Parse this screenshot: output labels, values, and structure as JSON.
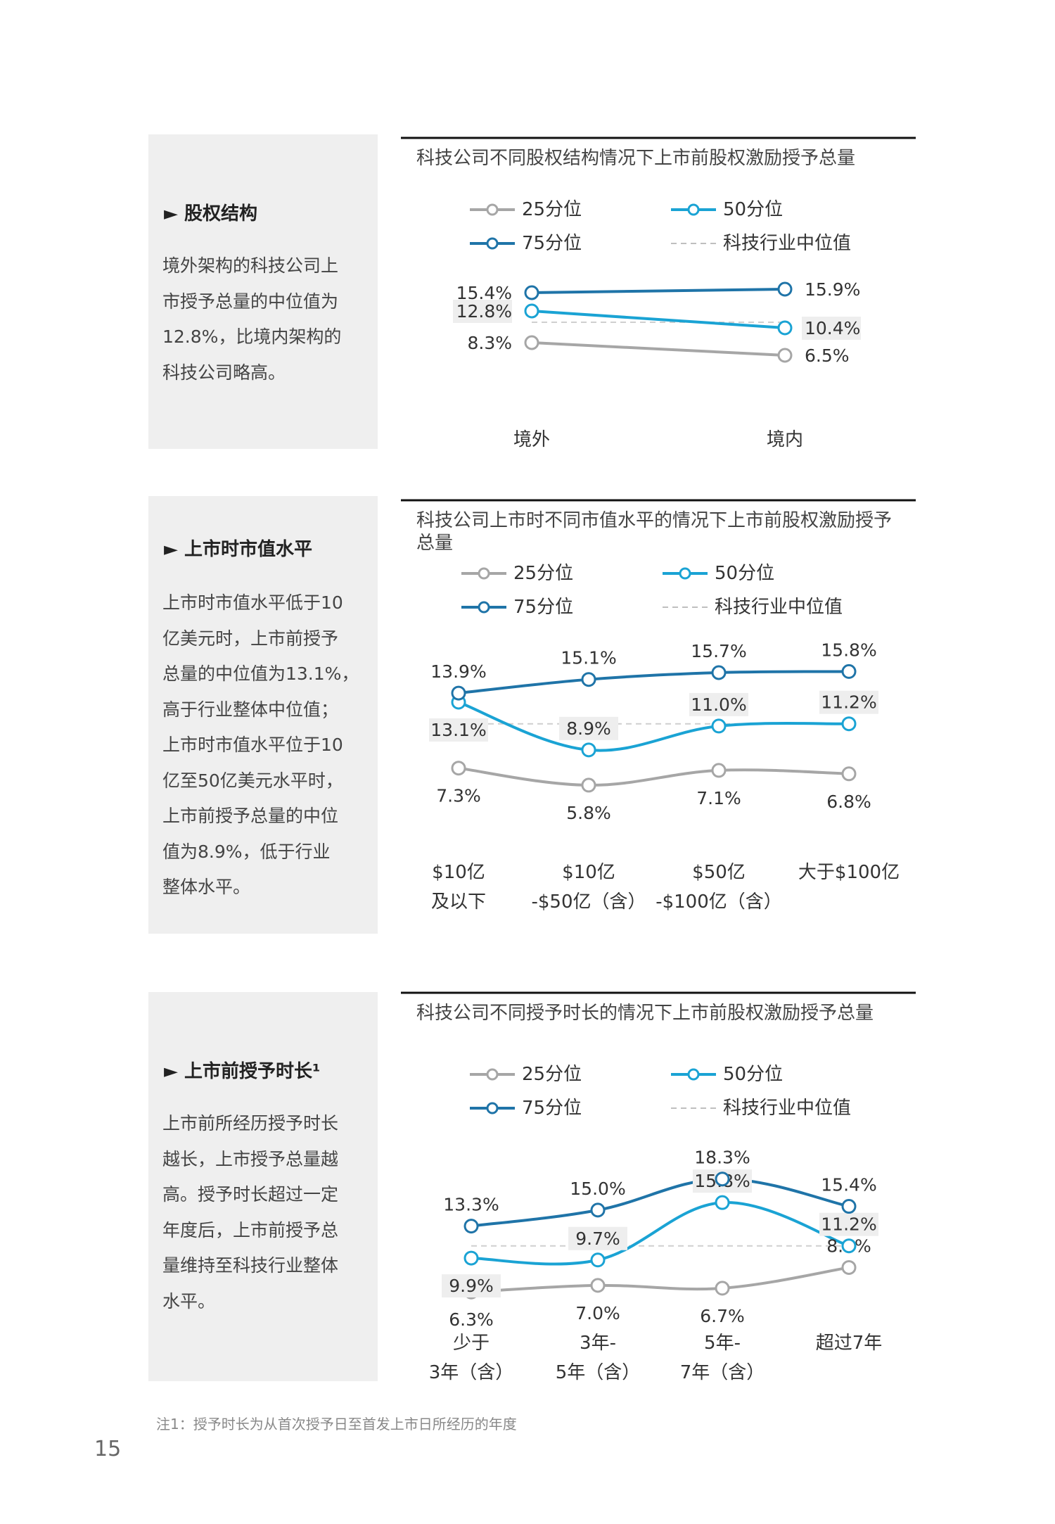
{
  "sections": [
    {
      "side_title": "► 股权结构",
      "side_body": [
        "境外架构的科技公司上",
        "市授予总量的中位值为",
        "12.8%，比境内架构的",
        "科技公司略高。"
      ]
    },
    {
      "side_title": "► 上市时市值水平",
      "side_body": [
        "上市时市值水平低于10",
        "亿美元时，上市前授予",
        "总量的中位值为13.1%，",
        "高于行业整体中位值；",
        "上市时市值水平位于10",
        "亿至50亿美元水平时，",
        "上市前授予总量的中位",
        "值为8.9%，低于行业",
        "整体水平。"
      ]
    },
    {
      "side_title": "► 上市前授予时长¹",
      "side_body": [
        "上市前所经历授予时长",
        "越长，上市授予总量越",
        "高。授予时长超过一定",
        "年度后，上市前授予总",
        "量维持至科技行业整体",
        "水平。"
      ]
    }
  ],
  "chart_data": [
    {
      "type": "line",
      "title": "科技公司不同股权结构情况下上市前股权激励授予总量",
      "categories": [
        [
          "境外"
        ],
        [
          "境内"
        ]
      ],
      "series": [
        {
          "name": "25分位",
          "values": [
            8.3,
            6.5
          ],
          "labels": [
            "8.3%",
            "6.5%"
          ],
          "color": "#a6a6a6"
        },
        {
          "name": "50分位",
          "values": [
            12.8,
            10.4
          ],
          "labels": [
            "12.8%",
            "10.4%"
          ],
          "color": "#1aa3d4"
        },
        {
          "name": "75分位",
          "values": [
            15.4,
            15.9
          ],
          "labels": [
            "15.4%",
            "15.9%"
          ],
          "color": "#1f74a8"
        }
      ],
      "reference": {
        "name": "科技行业中位值",
        "value": 11.2
      },
      "ylim": [
        5,
        17
      ]
    },
    {
      "type": "line",
      "title": "科技公司上市时不同市值水平的情况下上市前股权激励授予总量",
      "categories": [
        [
          "$10亿",
          "及以下"
        ],
        [
          "$10亿",
          "-$50亿（含）"
        ],
        [
          "$50亿",
          "-$100亿（含）"
        ],
        [
          "大于$100亿"
        ]
      ],
      "series": [
        {
          "name": "25分位",
          "values": [
            7.3,
            5.8,
            7.1,
            6.8
          ],
          "labels": [
            "7.3%",
            "5.8%",
            "7.1%",
            "6.8%"
          ],
          "color": "#a6a6a6"
        },
        {
          "name": "50分位",
          "values": [
            13.1,
            8.9,
            11.0,
            11.2
          ],
          "labels": [
            "13.1%",
            "8.9%",
            "11.0%",
            "11.2%"
          ],
          "color": "#1aa3d4"
        },
        {
          "name": "75分位",
          "values": [
            13.9,
            15.1,
            15.7,
            15.8
          ],
          "labels": [
            "13.9%",
            "15.1%",
            "15.7%",
            "15.8%"
          ],
          "color": "#1f74a8"
        }
      ],
      "reference": {
        "name": "科技行业中位值",
        "value": 11.2
      },
      "ylim": [
        4,
        17
      ]
    },
    {
      "type": "line",
      "title": "科技公司不同授予时长的情况下上市前股权激励授予总量",
      "categories": [
        [
          "少于",
          "3年（含）"
        ],
        [
          "3年-",
          "5年（含）"
        ],
        [
          "5年-",
          "7年（含）"
        ],
        [
          "超过7年"
        ]
      ],
      "series": [
        {
          "name": "25分位",
          "values": [
            6.3,
            7.0,
            6.7,
            8.9
          ],
          "labels": [
            "6.3%",
            "7.0%",
            "6.7%",
            "8.9%"
          ],
          "color": "#a6a6a6"
        },
        {
          "name": "50分位",
          "values": [
            9.9,
            9.7,
            15.8,
            11.2
          ],
          "labels": [
            "9.9%",
            "9.7%",
            "15.8%",
            "11.2%"
          ],
          "color": "#1aa3d4"
        },
        {
          "name": "75分位",
          "values": [
            13.3,
            15.0,
            18.3,
            15.4
          ],
          "labels": [
            "13.3%",
            "15.0%",
            "18.3%",
            "15.4%"
          ],
          "color": "#1f74a8"
        }
      ],
      "reference": {
        "name": "科技行业中位值",
        "value": 11.2
      },
      "ylim": [
        4,
        20
      ]
    }
  ],
  "footnote": "注1：授予时长为从首次授予日至首发上市日所经历的年度",
  "page_number": "15"
}
